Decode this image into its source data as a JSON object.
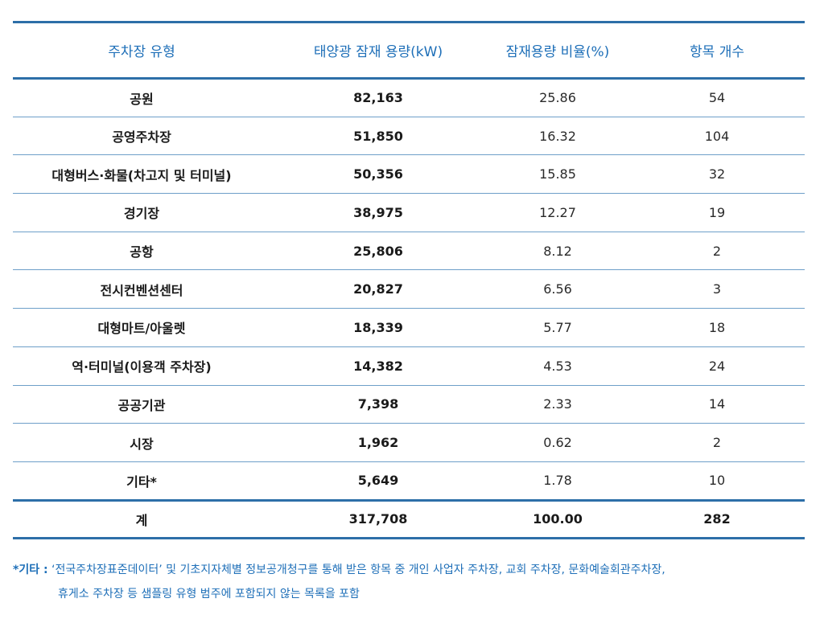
{
  "table": {
    "headers": [
      "주차장 유형",
      "태양광 잠재 용량(kW)",
      "잠재용량 비율(%)",
      "항목 개수"
    ],
    "rows": [
      {
        "type": "공원",
        "capacity": "82,163",
        "ratio": "25.86",
        "count": "54"
      },
      {
        "type": "공영주차장",
        "capacity": "51,850",
        "ratio": "16.32",
        "count": "104"
      },
      {
        "type": "대형버스·화물(차고지 및 터미널)",
        "capacity": "50,356",
        "ratio": "15.85",
        "count": "32"
      },
      {
        "type": "경기장",
        "capacity": "38,975",
        "ratio": "12.27",
        "count": "19"
      },
      {
        "type": "공항",
        "capacity": "25,806",
        "ratio": "8.12",
        "count": "2"
      },
      {
        "type": "전시컨벤션센터",
        "capacity": "20,827",
        "ratio": "6.56",
        "count": "3"
      },
      {
        "type": "대형마트/아울렛",
        "capacity": "18,339",
        "ratio": "5.77",
        "count": "18"
      },
      {
        "type": "역·터미널(이용객 주차장)",
        "capacity": "14,382",
        "ratio": "4.53",
        "count": "24"
      },
      {
        "type": "공공기관",
        "capacity": "7,398",
        "ratio": "2.33",
        "count": "14"
      },
      {
        "type": "시장",
        "capacity": "1,962",
        "ratio": "0.62",
        "count": "2"
      },
      {
        "type": "기타*",
        "capacity": "5,649",
        "ratio": "1.78",
        "count": "10"
      }
    ],
    "total": {
      "type": "계",
      "capacity": "317,708",
      "ratio": "100.00",
      "count": "282"
    }
  },
  "footnote": {
    "label": "*기타 :",
    "line1": "‘전국주차장표준데이터’ 및 기초지자체별 정보공개청구를 통해 받은 항목 중 개인 사업자 주차장, 교회 주차장, 문화예술회관주차장,",
    "line2": "휴게소 주차장 등 샘플링 유형 범주에 포함되지 않는 목록을 포함"
  },
  "colors": {
    "header_text": "#1e6fb8",
    "rule_line": "#2d6fa8",
    "footnote_text": "#1e6fb8"
  }
}
